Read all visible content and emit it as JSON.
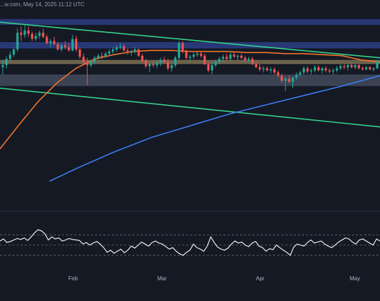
{
  "header": {
    "text": "...w.com, May 14, 2025 11:12 UTC"
  },
  "colors": {
    "background": "#151924",
    "up_candle": "#26a69a",
    "down_candle": "#ef5350",
    "resistance_zone": "#2c3e86",
    "support_zone": "#5b6478",
    "key_level": "#8a7a5a",
    "trendline": "#35d38a",
    "ma_100": "#f2762b",
    "ma_200": "#3b7df0",
    "rsi_line": "#ffffff"
  },
  "chart_data": [
    {
      "type": "candlestick",
      "title": "",
      "x_tick_labels": [
        "Feb",
        "Mar",
        "Apr",
        "May"
      ],
      "grid": false,
      "price_zones": [
        {
          "name": "upper resistance zone",
          "kind": "resistance",
          "y_range": [
            0.855,
            0.91
          ]
        },
        {
          "name": "resistance zone",
          "kind": "resistance",
          "y_range": [
            0.63,
            0.69
          ]
        },
        {
          "name": "key level",
          "kind": "key-level",
          "y": 0.5
        },
        {
          "name": "support zone",
          "kind": "support",
          "y_range": [
            0.27,
            0.38
          ]
        }
      ],
      "trendlines": [
        {
          "name": "upper trendline",
          "start": [
            0,
            0.88
          ],
          "end": [
            1,
            0.54
          ]
        },
        {
          "name": "lower trendline",
          "start": [
            0,
            0.25
          ],
          "end": [
            1,
            -0.12
          ]
        }
      ],
      "moving_averages": [
        {
          "name": "100-day MA",
          "color_key": "ma_100",
          "points": [
            [
              0,
              -0.33
            ],
            [
              0.05,
              -0.1
            ],
            [
              0.1,
              0.12
            ],
            [
              0.15,
              0.3
            ],
            [
              0.2,
              0.44
            ],
            [
              0.25,
              0.53
            ],
            [
              0.3,
              0.57
            ],
            [
              0.35,
              0.6
            ],
            [
              0.4,
              0.61
            ],
            [
              0.45,
              0.61
            ],
            [
              0.5,
              0.6
            ],
            [
              0.55,
              0.6
            ],
            [
              0.6,
              0.6
            ],
            [
              0.65,
              0.59
            ],
            [
              0.7,
              0.59
            ],
            [
              0.75,
              0.58
            ],
            [
              0.8,
              0.58
            ],
            [
              0.85,
              0.57
            ],
            [
              0.9,
              0.56
            ],
            [
              0.95,
              0.52
            ],
            [
              1,
              0.5
            ]
          ]
        },
        {
          "name": "200-day MA",
          "color_key": "ma_200",
          "points": [
            [
              0.13,
              -0.64
            ],
            [
              0.2,
              -0.52
            ],
            [
              0.3,
              -0.36
            ],
            [
              0.4,
              -0.22
            ],
            [
              0.5,
              -0.11
            ],
            [
              0.6,
              0.0
            ],
            [
              0.7,
              0.09
            ],
            [
              0.8,
              0.18
            ],
            [
              0.9,
              0.27
            ],
            [
              1,
              0.37
            ]
          ]
        }
      ],
      "ohlc": [
        [
          0.45,
          0.52,
          0.38,
          0.47
        ],
        [
          0.47,
          0.55,
          0.44,
          0.53
        ],
        [
          0.53,
          0.6,
          0.5,
          0.57
        ],
        [
          0.57,
          0.64,
          0.55,
          0.62
        ],
        [
          0.62,
          0.82,
          0.6,
          0.78
        ],
        [
          0.78,
          0.84,
          0.7,
          0.76
        ],
        [
          0.76,
          0.85,
          0.73,
          0.8
        ],
        [
          0.8,
          0.84,
          0.74,
          0.77
        ],
        [
          0.77,
          0.79,
          0.7,
          0.72
        ],
        [
          0.72,
          0.78,
          0.7,
          0.75
        ],
        [
          0.75,
          0.8,
          0.72,
          0.78
        ],
        [
          0.78,
          0.82,
          0.73,
          0.74
        ],
        [
          0.74,
          0.76,
          0.67,
          0.68
        ],
        [
          0.68,
          0.72,
          0.64,
          0.7
        ],
        [
          0.7,
          0.74,
          0.66,
          0.67
        ],
        [
          0.67,
          0.69,
          0.61,
          0.62
        ],
        [
          0.62,
          0.68,
          0.6,
          0.66
        ],
        [
          0.66,
          0.7,
          0.62,
          0.64
        ],
        [
          0.64,
          0.68,
          0.6,
          0.61
        ],
        [
          0.61,
          0.76,
          0.6,
          0.72
        ],
        [
          0.72,
          0.75,
          0.6,
          0.62
        ],
        [
          0.62,
          0.64,
          0.53,
          0.55
        ],
        [
          0.55,
          0.58,
          0.48,
          0.5
        ],
        [
          0.5,
          0.54,
          0.28,
          0.47
        ],
        [
          0.47,
          0.52,
          0.45,
          0.5
        ],
        [
          0.5,
          0.56,
          0.48,
          0.54
        ],
        [
          0.54,
          0.58,
          0.52,
          0.56
        ],
        [
          0.56,
          0.59,
          0.53,
          0.55
        ],
        [
          0.55,
          0.6,
          0.54,
          0.58
        ],
        [
          0.58,
          0.62,
          0.56,
          0.6
        ],
        [
          0.6,
          0.64,
          0.58,
          0.62
        ],
        [
          0.62,
          0.66,
          0.6,
          0.64
        ],
        [
          0.64,
          0.68,
          0.62,
          0.65
        ],
        [
          0.65,
          0.67,
          0.6,
          0.61
        ],
        [
          0.61,
          0.63,
          0.57,
          0.59
        ],
        [
          0.59,
          0.62,
          0.56,
          0.6
        ],
        [
          0.6,
          0.64,
          0.58,
          0.62
        ],
        [
          0.62,
          0.63,
          0.55,
          0.56
        ],
        [
          0.56,
          0.58,
          0.49,
          0.51
        ],
        [
          0.51,
          0.53,
          0.44,
          0.46
        ],
        [
          0.46,
          0.5,
          0.4,
          0.48
        ],
        [
          0.48,
          0.51,
          0.45,
          0.47
        ],
        [
          0.47,
          0.52,
          0.44,
          0.49
        ],
        [
          0.49,
          0.54,
          0.46,
          0.52
        ],
        [
          0.52,
          0.55,
          0.49,
          0.5
        ],
        [
          0.5,
          0.53,
          0.42,
          0.44
        ],
        [
          0.44,
          0.49,
          0.41,
          0.47
        ],
        [
          0.47,
          0.56,
          0.45,
          0.54
        ],
        [
          0.54,
          0.7,
          0.52,
          0.68
        ],
        [
          0.68,
          0.7,
          0.58,
          0.6
        ],
        [
          0.6,
          0.62,
          0.52,
          0.54
        ],
        [
          0.54,
          0.57,
          0.5,
          0.55
        ],
        [
          0.55,
          0.59,
          0.53,
          0.57
        ],
        [
          0.57,
          0.6,
          0.55,
          0.58
        ],
        [
          0.58,
          0.6,
          0.54,
          0.56
        ],
        [
          0.56,
          0.58,
          0.47,
          0.48
        ],
        [
          0.48,
          0.5,
          0.4,
          0.42
        ],
        [
          0.42,
          0.5,
          0.38,
          0.47
        ],
        [
          0.47,
          0.52,
          0.45,
          0.5
        ],
        [
          0.5,
          0.55,
          0.48,
          0.53
        ],
        [
          0.53,
          0.57,
          0.5,
          0.55
        ],
        [
          0.55,
          0.58,
          0.52,
          0.53
        ],
        [
          0.53,
          0.59,
          0.51,
          0.57
        ],
        [
          0.57,
          0.6,
          0.54,
          0.55
        ],
        [
          0.55,
          0.57,
          0.52,
          0.56
        ],
        [
          0.56,
          0.58,
          0.53,
          0.54
        ],
        [
          0.54,
          0.56,
          0.5,
          0.52
        ],
        [
          0.52,
          0.55,
          0.49,
          0.53
        ],
        [
          0.53,
          0.55,
          0.47,
          0.48
        ],
        [
          0.48,
          0.5,
          0.44,
          0.45
        ],
        [
          0.45,
          0.48,
          0.41,
          0.43
        ],
        [
          0.43,
          0.46,
          0.4,
          0.44
        ],
        [
          0.44,
          0.46,
          0.41,
          0.42
        ],
        [
          0.42,
          0.45,
          0.39,
          0.43
        ],
        [
          0.43,
          0.45,
          0.38,
          0.4
        ],
        [
          0.4,
          0.42,
          0.35,
          0.37
        ],
        [
          0.37,
          0.39,
          0.3,
          0.32
        ],
        [
          0.32,
          0.36,
          0.22,
          0.34
        ],
        [
          0.34,
          0.37,
          0.3,
          0.31
        ],
        [
          0.31,
          0.36,
          0.25,
          0.35
        ],
        [
          0.35,
          0.4,
          0.33,
          0.38
        ],
        [
          0.38,
          0.42,
          0.36,
          0.4
        ],
        [
          0.4,
          0.46,
          0.38,
          0.44
        ],
        [
          0.44,
          0.46,
          0.39,
          0.41
        ],
        [
          0.41,
          0.44,
          0.38,
          0.42
        ],
        [
          0.42,
          0.47,
          0.4,
          0.45
        ],
        [
          0.45,
          0.47,
          0.41,
          0.42
        ],
        [
          0.42,
          0.45,
          0.39,
          0.44
        ],
        [
          0.44,
          0.46,
          0.4,
          0.42
        ],
        [
          0.42,
          0.44,
          0.39,
          0.41
        ],
        [
          0.41,
          0.44,
          0.38,
          0.42
        ],
        [
          0.42,
          0.46,
          0.4,
          0.44
        ],
        [
          0.44,
          0.48,
          0.42,
          0.46
        ],
        [
          0.46,
          0.48,
          0.43,
          0.45
        ],
        [
          0.45,
          0.48,
          0.42,
          0.47
        ],
        [
          0.47,
          0.49,
          0.44,
          0.45
        ],
        [
          0.45,
          0.48,
          0.43,
          0.47
        ],
        [
          0.47,
          0.48,
          0.43,
          0.44
        ],
        [
          0.44,
          0.46,
          0.42,
          0.43
        ],
        [
          0.43,
          0.46,
          0.42,
          0.45
        ],
        [
          0.45,
          0.46,
          0.42,
          0.43
        ],
        [
          0.43,
          0.45,
          0.41,
          0.44
        ],
        [
          0.44,
          0.52,
          0.43,
          0.51
        ]
      ]
    },
    {
      "type": "line",
      "name": "RSI",
      "ylim": [
        0,
        100
      ],
      "reference_levels": [
        70,
        50,
        30
      ],
      "values": [
        58,
        62,
        55,
        57,
        60,
        63,
        61,
        64,
        59,
        66,
        74,
        80,
        78,
        72,
        60,
        66,
        62,
        64,
        58,
        60,
        63,
        61,
        60,
        59,
        52,
        55,
        50,
        54,
        57,
        52,
        45,
        36,
        40,
        34,
        38,
        42,
        35,
        40,
        48,
        44,
        50,
        56,
        52,
        48,
        55,
        58,
        54,
        52,
        47,
        42,
        45,
        38,
        33,
        30,
        36,
        40,
        52,
        45,
        42,
        38,
        48,
        66,
        55,
        46,
        42,
        40,
        44,
        52,
        58,
        54,
        56,
        50,
        47,
        54,
        57,
        48,
        45,
        38,
        43,
        41,
        50,
        45,
        40,
        36,
        30,
        46,
        52,
        50,
        48,
        55,
        60,
        54,
        56,
        58,
        52,
        48,
        45,
        50,
        56,
        60,
        64,
        62,
        56,
        52,
        60,
        62,
        58,
        54,
        50,
        62,
        58
      ]
    }
  ]
}
